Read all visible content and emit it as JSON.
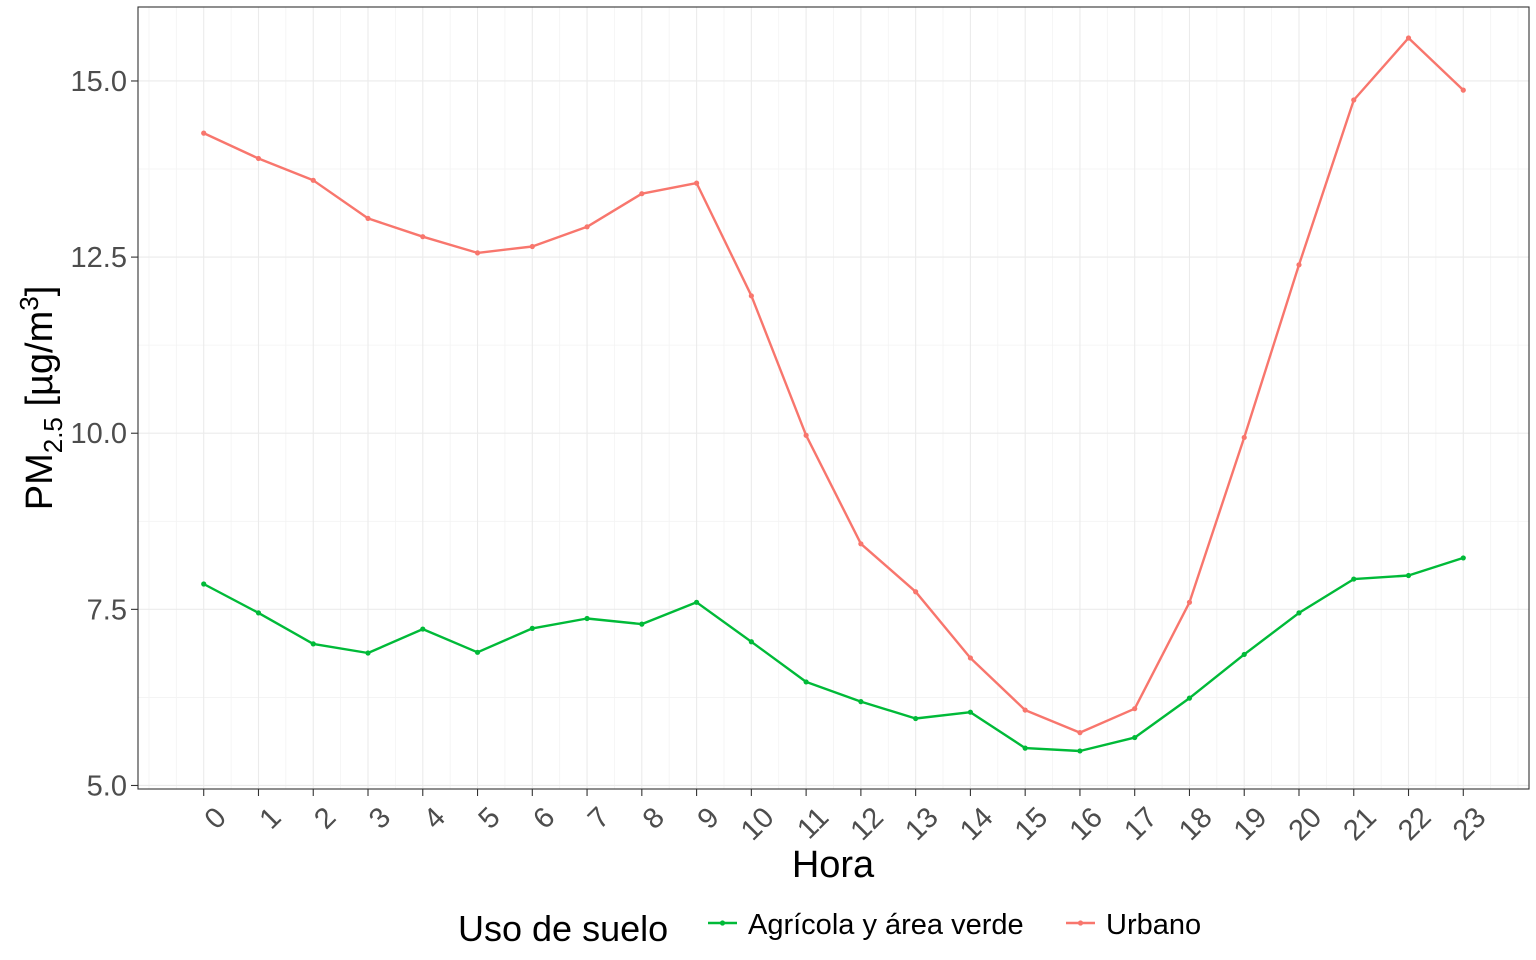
{
  "chart_data": {
    "type": "line",
    "xlabel": "Hora",
    "ylabel": {
      "base": "PM",
      "sub": "2.5",
      "unit_open": " [µg/m",
      "sup": "3",
      "unit_close": "]"
    },
    "x": [
      0,
      1,
      2,
      3,
      4,
      5,
      6,
      7,
      8,
      9,
      10,
      11,
      12,
      13,
      14,
      15,
      16,
      17,
      18,
      19,
      20,
      21,
      22,
      23
    ],
    "x_tick_labels": [
      "0",
      "1",
      "2",
      "3",
      "4",
      "5",
      "6",
      "7",
      "8",
      "9",
      "10",
      "11",
      "12",
      "13",
      "14",
      "15",
      "16",
      "17",
      "18",
      "19",
      "20",
      "21",
      "22",
      "23"
    ],
    "xlim": [
      -1.2,
      24.2
    ],
    "ylim": [
      4.95,
      16.05
    ],
    "y_ticks": [
      5.0,
      7.5,
      10.0,
      12.5,
      15.0
    ],
    "y_tick_labels": [
      "5.0",
      "7.5",
      "10.0",
      "12.5",
      "15.0"
    ],
    "grid": true,
    "legend": {
      "title": "Uso de suelo",
      "position": "bottom"
    },
    "series": [
      {
        "name": "Agrícola y área verde",
        "color": "#00ba38",
        "values": [
          7.86,
          7.45,
          7.01,
          6.88,
          7.22,
          6.89,
          7.23,
          7.37,
          7.29,
          7.6,
          7.04,
          6.47,
          6.19,
          5.95,
          6.04,
          5.53,
          5.49,
          5.68,
          6.24,
          6.86,
          7.45,
          7.93,
          7.98,
          8.23
        ]
      },
      {
        "name": "Urbano",
        "color": "#f8766d",
        "values": [
          14.26,
          13.9,
          13.59,
          13.05,
          12.79,
          12.56,
          12.65,
          12.93,
          13.4,
          13.55,
          11.95,
          9.97,
          8.43,
          7.75,
          6.81,
          6.07,
          5.75,
          6.09,
          7.6,
          9.94,
          12.39,
          14.73,
          15.61,
          14.87
        ]
      }
    ]
  }
}
